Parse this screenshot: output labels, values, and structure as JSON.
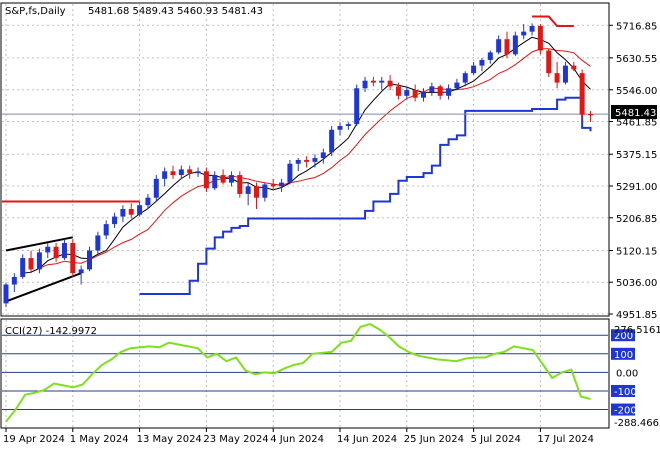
{
  "header": {
    "symbol": "S&P,fs,Daily",
    "ohlc": "5481.68 5489.43 5460.93 5481.43"
  },
  "indicator": {
    "label": "CCI(27) -142.9972",
    "top_value": "276.5161",
    "bottom_value": "-288.4665",
    "level_labels": [
      "200",
      "100",
      "0.00",
      "-100",
      "-200"
    ]
  },
  "current_price_label": "5481.43",
  "colors": {
    "bull": "#1f36d6",
    "bear": "#e31515",
    "ma_fast": "#e31515",
    "ma_slow": "#000000",
    "stop_line": "#1f36d6",
    "cci": "#7fe01e",
    "level_line": "#2a3d8a",
    "grid": "#c0c0c0",
    "price_tag_bg": "#000000",
    "cci_tag_bg": "#1f36d6"
  },
  "chart_data": {
    "type": "candlestick",
    "main": {
      "ylim": [
        4951.85,
        5760
      ],
      "yticks": [
        "5716.85",
        "5630.55",
        "5546.00",
        "5461.85",
        "5375.15",
        "5291.00",
        "5206.85",
        "5120.15",
        "5036.00",
        "4951.85"
      ],
      "xticks": [
        "19 Apr 2024",
        "1 May 2024",
        "13 May 2024",
        "23 May 2024",
        "4 Jun 2024",
        "14 Jun 2024",
        "25 Jun 2024",
        "5 Jul 2024",
        "17 Jul 2024"
      ],
      "last_price": 5481.43,
      "candles": [
        [
          4980,
          5035,
          4970,
          5030
        ],
        [
          5030,
          5060,
          5010,
          5050
        ],
        [
          5050,
          5110,
          5045,
          5100
        ],
        [
          5100,
          5120,
          5060,
          5070
        ],
        [
          5070,
          5125,
          5060,
          5115
        ],
        [
          5115,
          5140,
          5100,
          5130
        ],
        [
          5130,
          5140,
          5090,
          5100
        ],
        [
          5100,
          5150,
          5095,
          5140
        ],
        [
          5140,
          5150,
          5050,
          5060
        ],
        [
          5060,
          5080,
          5030,
          5070
        ],
        [
          5070,
          5130,
          5065,
          5120
        ],
        [
          5120,
          5170,
          5110,
          5160
        ],
        [
          5160,
          5200,
          5150,
          5190
        ],
        [
          5190,
          5220,
          5180,
          5210
        ],
        [
          5210,
          5240,
          5195,
          5230
        ],
        [
          5230,
          5245,
          5205,
          5215
        ],
        [
          5215,
          5250,
          5210,
          5240
        ],
        [
          5240,
          5270,
          5230,
          5260
        ],
        [
          5260,
          5320,
          5250,
          5310
        ],
        [
          5310,
          5340,
          5290,
          5330
        ],
        [
          5330,
          5345,
          5310,
          5320
        ],
        [
          5320,
          5345,
          5310,
          5335
        ],
        [
          5335,
          5345,
          5310,
          5325
        ],
        [
          5325,
          5340,
          5315,
          5330
        ],
        [
          5330,
          5340,
          5275,
          5285
        ],
        [
          5285,
          5330,
          5280,
          5320
        ],
        [
          5320,
          5335,
          5295,
          5300
        ],
        [
          5300,
          5330,
          5290,
          5320
        ],
        [
          5320,
          5330,
          5260,
          5270
        ],
        [
          5270,
          5300,
          5240,
          5290
        ],
        [
          5290,
          5300,
          5230,
          5260
        ],
        [
          5260,
          5300,
          5250,
          5295
        ],
        [
          5295,
          5310,
          5280,
          5290
        ],
        [
          5290,
          5310,
          5275,
          5300
        ],
        [
          5300,
          5360,
          5295,
          5350
        ],
        [
          5350,
          5365,
          5330,
          5360
        ],
        [
          5360,
          5370,
          5340,
          5355
        ],
        [
          5355,
          5375,
          5340,
          5365
        ],
        [
          5365,
          5390,
          5350,
          5380
        ],
        [
          5380,
          5450,
          5370,
          5440
        ],
        [
          5440,
          5460,
          5425,
          5450
        ],
        [
          5450,
          5460,
          5440,
          5455
        ],
        [
          5455,
          5560,
          5450,
          5550
        ],
        [
          5550,
          5580,
          5540,
          5570
        ],
        [
          5570,
          5580,
          5555,
          5565
        ],
        [
          5565,
          5580,
          5545,
          5570
        ],
        [
          5570,
          5585,
          5545,
          5555
        ],
        [
          5555,
          5565,
          5520,
          5530
        ],
        [
          5530,
          5555,
          5520,
          5545
        ],
        [
          5545,
          5560,
          5515,
          5525
        ],
        [
          5525,
          5550,
          5515,
          5540
        ],
        [
          5540,
          5565,
          5530,
          5555
        ],
        [
          5555,
          5560,
          5520,
          5530
        ],
        [
          5530,
          5560,
          5520,
          5550
        ],
        [
          5550,
          5575,
          5545,
          5565
        ],
        [
          5565,
          5595,
          5555,
          5590
        ],
        [
          5590,
          5620,
          5585,
          5610
        ],
        [
          5610,
          5630,
          5595,
          5625
        ],
        [
          5625,
          5650,
          5615,
          5645
        ],
        [
          5645,
          5690,
          5640,
          5680
        ],
        [
          5680,
          5700,
          5630,
          5640
        ],
        [
          5640,
          5700,
          5635,
          5690
        ],
        [
          5690,
          5720,
          5680,
          5700
        ],
        [
          5700,
          5722,
          5690,
          5715
        ],
        [
          5715,
          5720,
          5640,
          5650
        ],
        [
          5650,
          5655,
          5580,
          5590
        ],
        [
          5590,
          5620,
          5550,
          5565
        ],
        [
          5565,
          5620,
          5560,
          5610
        ],
        [
          5610,
          5620,
          5595,
          5600
        ],
        [
          5590,
          5600,
          5470,
          5480
        ],
        [
          5481.68,
          5489.43,
          5460.93,
          5481.43
        ]
      ]
    },
    "cci": {
      "ylim": [
        -288.4665,
        276.5161
      ],
      "levels": [
        200,
        100,
        0,
        -100,
        -200
      ],
      "values": [
        -265,
        -200,
        -120,
        -110,
        -95,
        -60,
        -70,
        -80,
        -65,
        -10,
        40,
        70,
        110,
        130,
        135,
        140,
        135,
        160,
        150,
        140,
        130,
        80,
        100,
        60,
        80,
        10,
        -10,
        0,
        -5,
        20,
        40,
        50,
        100,
        105,
        110,
        160,
        170,
        245,
        260,
        230,
        190,
        140,
        110,
        90,
        80,
        70,
        65,
        60,
        75,
        80,
        80,
        100,
        110,
        140,
        130,
        120,
        45,
        -30,
        0,
        15,
        -130,
        -143
      ]
    }
  }
}
